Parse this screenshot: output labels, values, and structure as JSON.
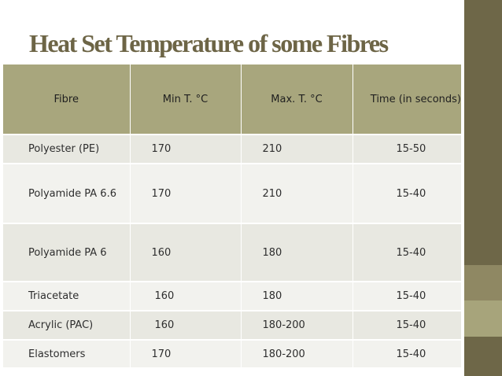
{
  "slide": {
    "title": "Heat Set Temperature of some Fibres"
  },
  "table": {
    "headers": [
      "Fibre",
      "Min T. °C",
      "Max. T. °C",
      "Time (in seconds)"
    ],
    "rows": [
      {
        "fibre": "Polyester (PE)",
        "min": "170",
        "max": "210",
        "time": "15-50"
      },
      {
        "fibre": "Polyamide PA 6.6",
        "min": "170",
        "max": "210",
        "time": "15-40"
      },
      {
        "fibre": "Polyamide PA 6",
        "min": "160",
        "max": "180",
        "time": "15-40"
      },
      {
        "fibre": "Triacetate",
        "min": "160",
        "max": "180",
        "time": "15-40"
      },
      {
        "fibre": "Acrylic (PAC)",
        "min": "160",
        "max": "180-200",
        "time": "15-40"
      },
      {
        "fibre": "Elastomers",
        "min": "170",
        "max": "180-200",
        "time": "15-40"
      }
    ]
  },
  "colors": {
    "title": "#6d6546",
    "header_fill": "#a8a67d",
    "row_fill": "#e8e8e1",
    "sidebar": "#6e6748"
  }
}
